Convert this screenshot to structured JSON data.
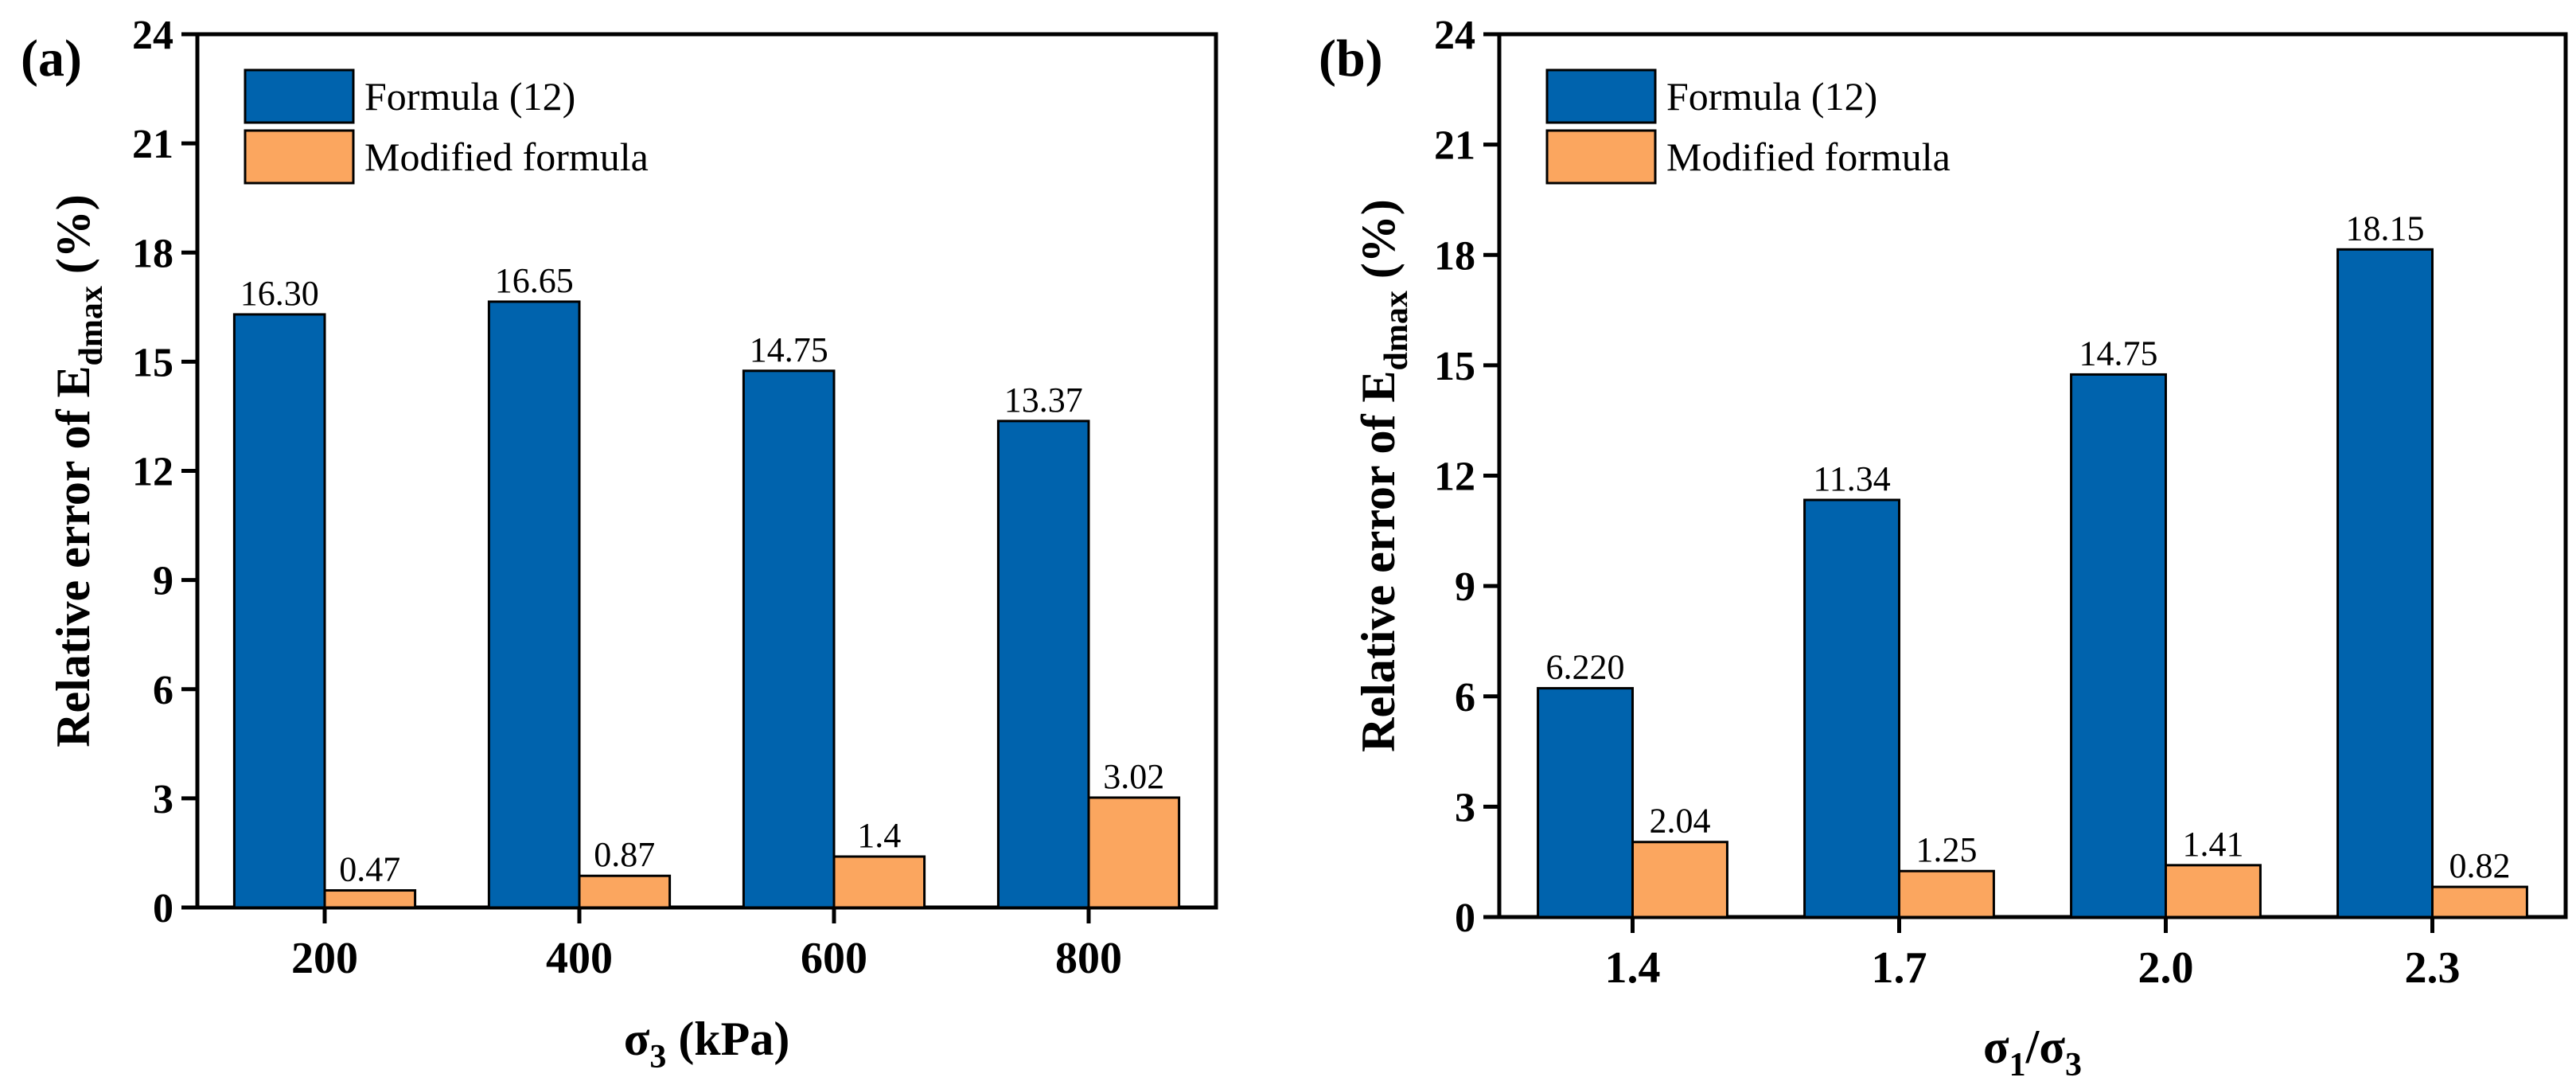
{
  "chart_data": [
    {
      "type": "bar",
      "panel_label": "(a)",
      "categories": [
        "200",
        "400",
        "600",
        "800"
      ],
      "series": [
        {
          "name": "Formula (12)",
          "values": [
            16.3,
            16.65,
            14.75,
            13.37
          ],
          "labels": [
            "16.30",
            "16.65",
            "14.75",
            "13.37"
          ],
          "color": "#0063ad"
        },
        {
          "name": "Modified formula",
          "values": [
            0.47,
            0.87,
            1.4,
            3.02
          ],
          "labels": [
            "0.47",
            "0.87",
            "1.4",
            "3.02"
          ],
          "color": "#fba65f"
        }
      ],
      "ylabel": {
        "main": "Relative error of E",
        "sub": "dmax",
        "tail": " (%)"
      },
      "xlabel": {
        "main": "σ",
        "sub": "3",
        "tail": " (kPa)"
      },
      "ylim": [
        0,
        24
      ],
      "yticks": [
        "0",
        "3",
        "6",
        "9",
        "12",
        "15",
        "18",
        "21",
        "24"
      ],
      "legend_position": "top-left",
      "grid": false
    },
    {
      "type": "bar",
      "panel_label": "(b)",
      "categories": [
        "1.4",
        "1.7",
        "2.0",
        "2.3"
      ],
      "series": [
        {
          "name": "Formula (12)",
          "values": [
            6.22,
            11.34,
            14.75,
            18.15
          ],
          "labels": [
            "6.220",
            "11.34",
            "14.75",
            "18.15"
          ],
          "color": "#0063ad"
        },
        {
          "name": "Modified formula",
          "values": [
            2.04,
            1.25,
            1.41,
            0.82
          ],
          "labels": [
            "2.04",
            "1.25",
            "1.41",
            "0.82"
          ],
          "color": "#fba65f"
        }
      ],
      "ylabel": {
        "main": "Relative error of E",
        "sub": "dmax",
        "tail": " (%)"
      },
      "xlabel": {
        "main": "σ",
        "sub": "1",
        "mid": "/σ",
        "sub2": "3"
      },
      "ylim": [
        0,
        24
      ],
      "yticks": [
        "0",
        "3",
        "6",
        "9",
        "12",
        "15",
        "18",
        "21",
        "24"
      ],
      "legend_position": "top-left",
      "grid": false
    }
  ]
}
